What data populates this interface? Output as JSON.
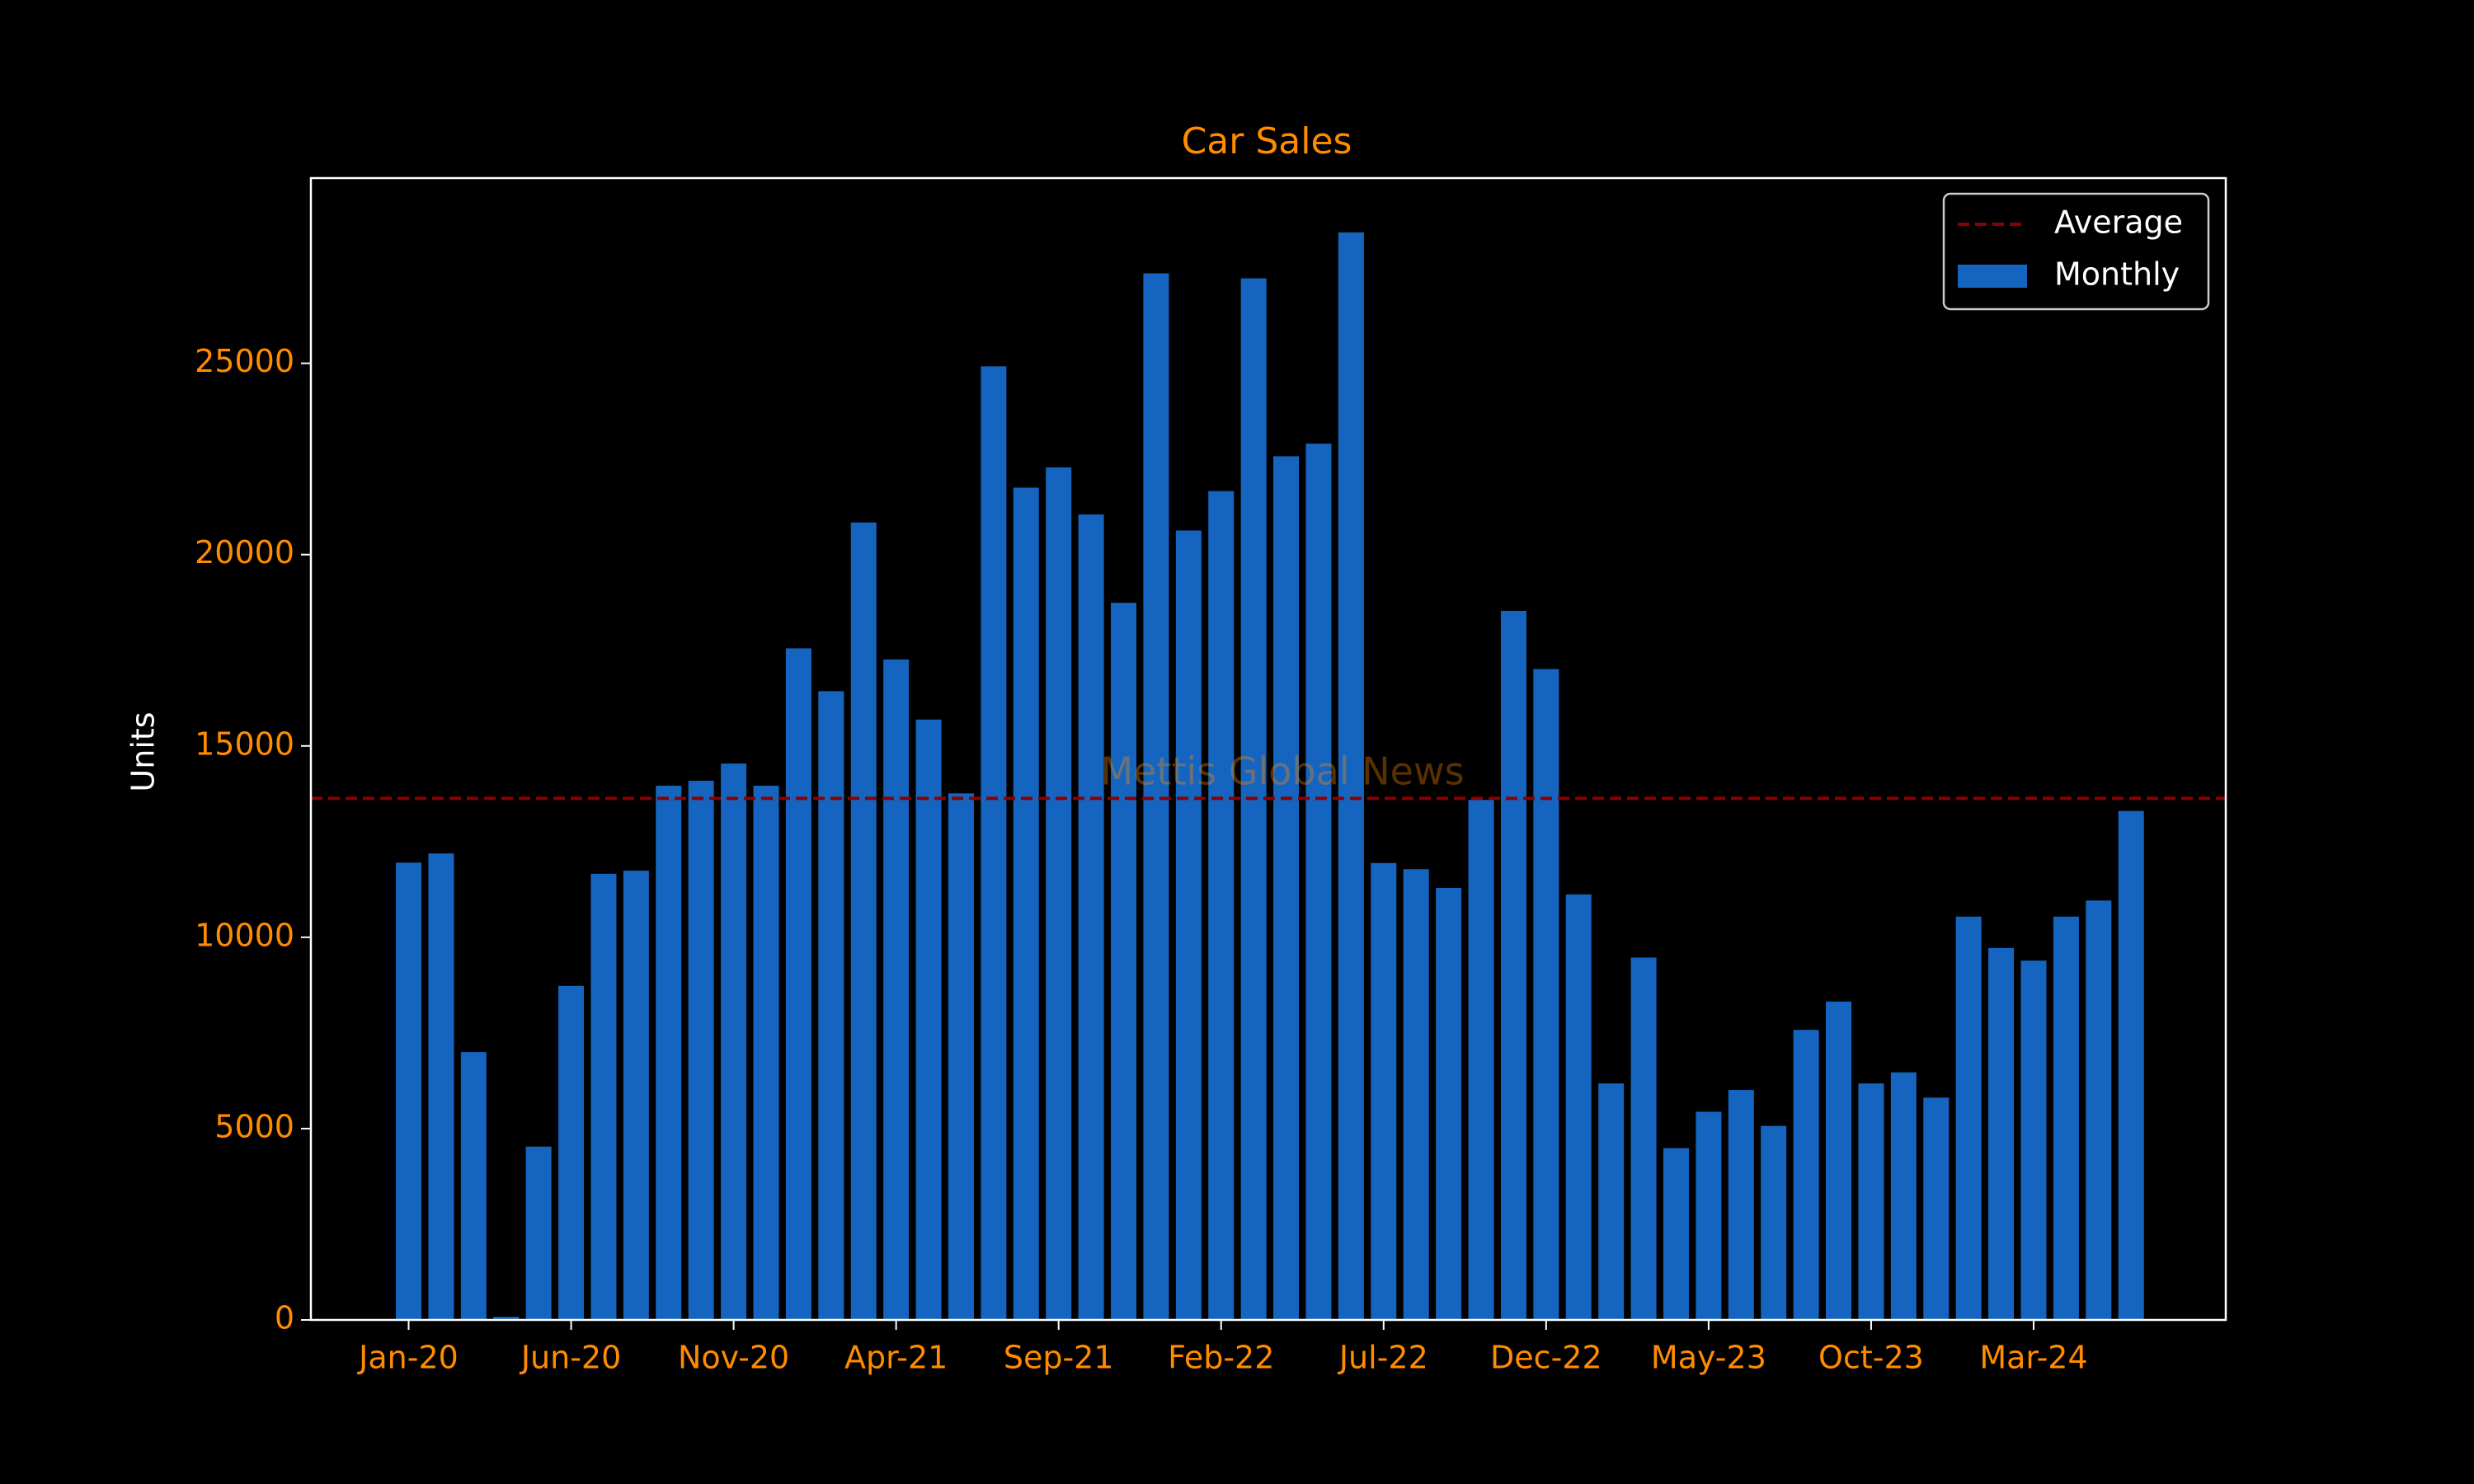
{
  "chart_data": {
    "type": "bar",
    "title": "Car Sales",
    "y_label": "Units",
    "watermark": "Mettis Global News",
    "categories": [
      "Jan-20",
      null,
      null,
      null,
      null,
      "Jun-20",
      null,
      null,
      null,
      null,
      "Nov-20",
      null,
      null,
      null,
      null,
      "Apr-21",
      null,
      null,
      null,
      null,
      "Sep-21",
      null,
      null,
      null,
      null,
      "Feb-22",
      null,
      null,
      null,
      null,
      "Jul-22",
      null,
      null,
      null,
      null,
      "Dec-22",
      null,
      null,
      null,
      null,
      "May-23",
      null,
      null,
      null,
      null,
      "Oct-23",
      null,
      null,
      null,
      null,
      "Mar-24",
      null,
      null,
      null
    ],
    "series": [
      {
        "name": "Monthly",
        "color": "#1565c0",
        "values": [
          11950,
          12190,
          7000,
          80,
          4530,
          8730,
          11660,
          11740,
          13960,
          14090,
          14540,
          13960,
          17550,
          16430,
          20840,
          17260,
          15690,
          13760,
          24920,
          21750,
          22280,
          21050,
          18740,
          27350,
          20630,
          21660,
          27220,
          22570,
          22900,
          28420,
          11940,
          11780,
          11290,
          13590,
          18530,
          17010,
          11120,
          6180,
          9470,
          4490,
          5440,
          6010,
          5070,
          7580,
          8320,
          6180,
          6470,
          5810,
          10540,
          9720,
          9390,
          10540,
          10960,
          13300
        ]
      }
    ],
    "reference_line": {
      "name": "Average",
      "value": 13630,
      "color": "#8b0000",
      "style": "dashed"
    },
    "ylim": [
      0,
      29840
    ],
    "yticks": [
      0,
      5000,
      10000,
      15000,
      20000,
      25000
    ],
    "grid": false,
    "legend": "upper right"
  }
}
